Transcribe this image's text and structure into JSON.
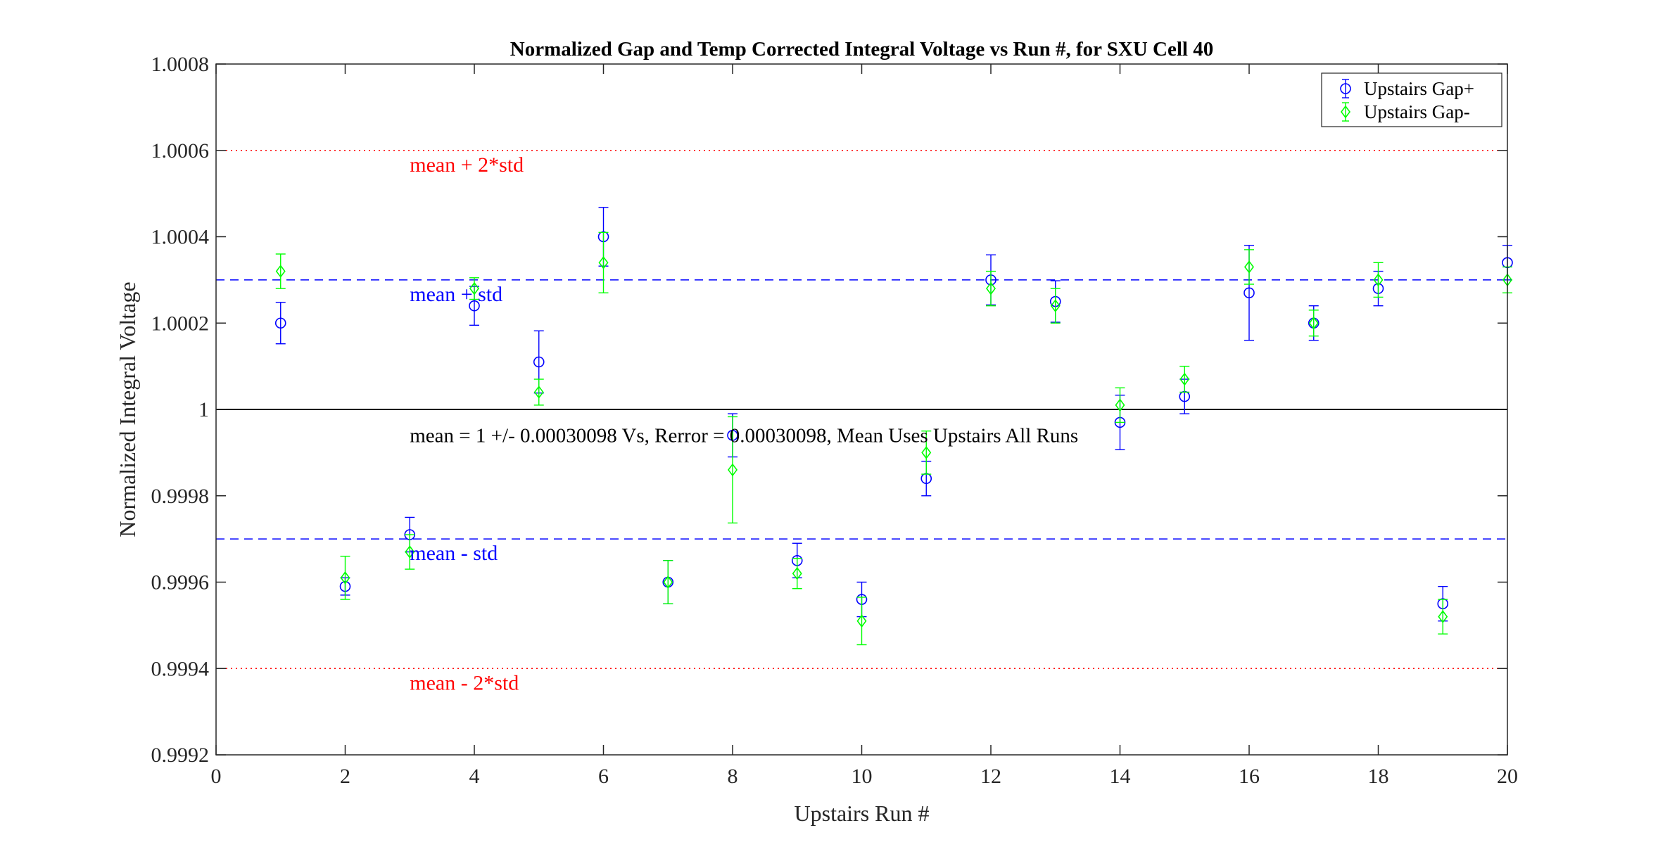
{
  "chart_data": {
    "type": "scatter",
    "title": "Normalized Gap and Temp Corrected Integral Voltage vs Run #, for SXU Cell 40",
    "xlabel": "Upstairs Run #",
    "ylabel": "Normalized Integral Voltage",
    "xlim": [
      0,
      20
    ],
    "ylim": [
      0.9992,
      1.0008
    ],
    "xticks": [
      0,
      2,
      4,
      6,
      8,
      10,
      12,
      14,
      16,
      18,
      20
    ],
    "xtick_labels": [
      "0",
      "2",
      "4",
      "6",
      "8",
      "10",
      "12",
      "14",
      "16",
      "18",
      "20"
    ],
    "yticks": [
      0.9992,
      0.9994,
      0.9996,
      0.9998,
      1.0,
      1.0002,
      1.0004,
      1.0006,
      1.0008
    ],
    "ytick_labels": [
      "0.9992",
      "0.9994",
      "0.9996",
      "0.9998",
      "1",
      "1.0002",
      "1.0004",
      "1.0006",
      "1.0008"
    ],
    "grid": false,
    "legend_position": "top-right",
    "series": [
      {
        "name": "Upstairs Gap+",
        "marker": "circle",
        "color": "#0000ff",
        "points": [
          {
            "x": 1,
            "y": 1.0002,
            "err": 4.8e-05
          },
          {
            "x": 2,
            "y": 0.99959,
            "err": 2e-05
          },
          {
            "x": 3,
            "y": 0.99971,
            "err": 4e-05
          },
          {
            "x": 4,
            "y": 1.00024,
            "err": 4.5e-05
          },
          {
            "x": 5,
            "y": 1.00011,
            "err": 7.2e-05
          },
          {
            "x": 6,
            "y": 1.0004,
            "err": 6.8e-05
          },
          {
            "x": 7,
            "y": 0.9996,
            "err": 5e-05
          },
          {
            "x": 8,
            "y": 0.99994,
            "err": 5e-05
          },
          {
            "x": 9,
            "y": 0.99965,
            "err": 4e-05
          },
          {
            "x": 10,
            "y": 0.99956,
            "err": 4e-05
          },
          {
            "x": 11,
            "y": 0.99984,
            "err": 4e-05
          },
          {
            "x": 12,
            "y": 1.0003,
            "err": 5.8e-05
          },
          {
            "x": 13,
            "y": 1.00025,
            "err": 4.8e-05
          },
          {
            "x": 14,
            "y": 0.99997,
            "err": 6.3e-05
          },
          {
            "x": 15,
            "y": 1.00003,
            "err": 4e-05
          },
          {
            "x": 16,
            "y": 1.00027,
            "err": 0.00011
          },
          {
            "x": 17,
            "y": 1.0002,
            "err": 4e-05
          },
          {
            "x": 18,
            "y": 1.00028,
            "err": 4e-05
          },
          {
            "x": 19,
            "y": 0.99955,
            "err": 4e-05
          },
          {
            "x": 20,
            "y": 1.00034,
            "err": 4e-05
          }
        ]
      },
      {
        "name": "Upstairs Gap-",
        "marker": "diamond",
        "color": "#00ff00",
        "points": [
          {
            "x": 1,
            "y": 1.00032,
            "err": 4e-05
          },
          {
            "x": 2,
            "y": 0.99961,
            "err": 5e-05
          },
          {
            "x": 3,
            "y": 0.99967,
            "err": 4e-05
          },
          {
            "x": 4,
            "y": 1.00028,
            "err": 2.5e-05
          },
          {
            "x": 5,
            "y": 1.00004,
            "err": 3e-05
          },
          {
            "x": 6,
            "y": 1.00034,
            "err": 7e-05
          },
          {
            "x": 7,
            "y": 0.9996,
            "err": 5e-05
          },
          {
            "x": 8,
            "y": 0.99986,
            "err": 0.000123
          },
          {
            "x": 9,
            "y": 0.99962,
            "err": 3.5e-05
          },
          {
            "x": 10,
            "y": 0.99951,
            "err": 5.5e-05
          },
          {
            "x": 11,
            "y": 0.9999,
            "err": 5e-05
          },
          {
            "x": 12,
            "y": 1.00028,
            "err": 4e-05
          },
          {
            "x": 13,
            "y": 1.00024,
            "err": 4e-05
          },
          {
            "x": 14,
            "y": 1.00001,
            "err": 4e-05
          },
          {
            "x": 15,
            "y": 1.00007,
            "err": 3e-05
          },
          {
            "x": 16,
            "y": 1.00033,
            "err": 4e-05
          },
          {
            "x": 17,
            "y": 1.0002,
            "err": 3e-05
          },
          {
            "x": 18,
            "y": 1.0003,
            "err": 4e-05
          },
          {
            "x": 19,
            "y": 0.99952,
            "err": 4e-05
          },
          {
            "x": 20,
            "y": 1.0003,
            "err": 3e-05
          }
        ]
      }
    ],
    "reference_lines": [
      {
        "label": "mean + 2*std",
        "y": 1.0006,
        "color": "#ff0000",
        "style": "dotted"
      },
      {
        "label": "mean + std",
        "y": 1.0003,
        "color": "#0000ff",
        "style": "dashed"
      },
      {
        "label": "",
        "y": 1.0,
        "color": "#000000",
        "style": "solid"
      },
      {
        "label": "mean - std",
        "y": 0.9997,
        "color": "#0000ff",
        "style": "dashed"
      },
      {
        "label": "mean - 2*std",
        "y": 0.9994,
        "color": "#ff0000",
        "style": "dotted"
      }
    ],
    "annotations": [
      {
        "text": "mean = 1 +/- 0.00030098 Vs, Rerror = 0.00030098, Mean Uses Upstairs All Runs",
        "x": 3,
        "y": 0.99997
      }
    ]
  }
}
